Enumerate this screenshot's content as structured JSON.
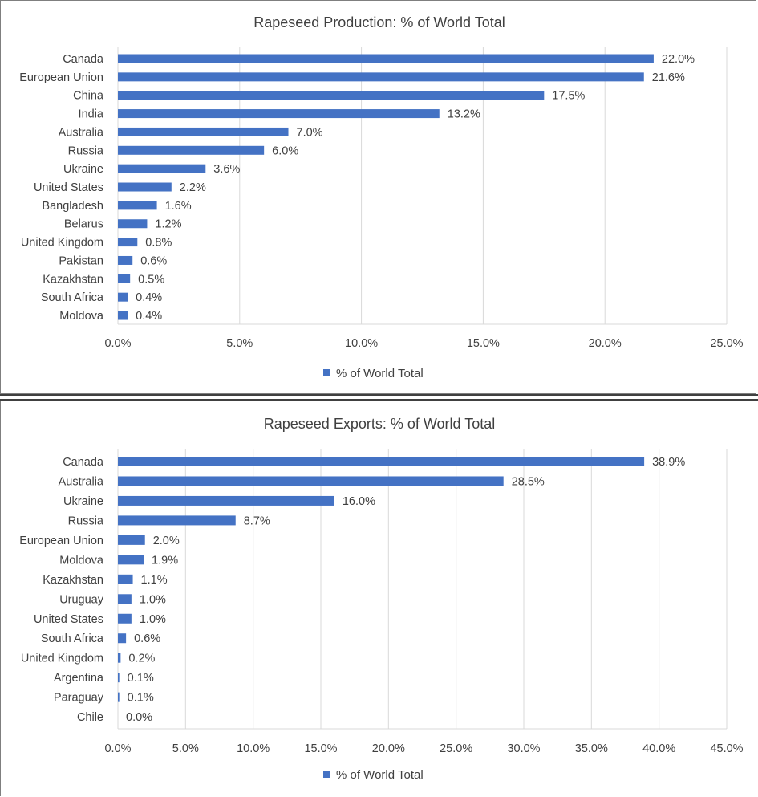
{
  "colors": {
    "bar": "#4472C4",
    "grid": "#d9d9d9",
    "text": "#404040",
    "frame": "#7f7f7f"
  },
  "chart_data": [
    {
      "type": "bar",
      "orientation": "horizontal",
      "title": "Rapeseed Production:  % of World Total",
      "categories": [
        "Canada",
        "European Union",
        "China",
        "India",
        "Australia",
        "Russia",
        "Ukraine",
        "United States",
        "Bangladesh",
        "Belarus",
        "United Kingdom",
        "Pakistan",
        "Kazakhstan",
        "South Africa",
        "Moldova"
      ],
      "values": [
        22.0,
        21.6,
        17.5,
        13.2,
        7.0,
        6.0,
        3.6,
        2.2,
        1.6,
        1.2,
        0.8,
        0.6,
        0.5,
        0.4,
        0.4
      ],
      "data_labels": [
        "22.0%",
        "21.6%",
        "17.5%",
        "13.2%",
        "7.0%",
        "6.0%",
        "3.6%",
        "2.2%",
        "1.6%",
        "1.2%",
        "0.8%",
        "0.6%",
        "0.5%",
        "0.4%",
        "0.4%"
      ],
      "xlim": [
        0,
        25
      ],
      "tick_values": [
        0,
        5,
        10,
        15,
        20,
        25
      ],
      "tick_labels": [
        "0.0%",
        "5.0%",
        "10.0%",
        "15.0%",
        "20.0%",
        "25.0%"
      ],
      "legend": {
        "label": "% of World Total",
        "position": "bottom"
      },
      "grid": true
    },
    {
      "type": "bar",
      "orientation": "horizontal",
      "title": "Rapeseed Exports:  % of World Total",
      "categories": [
        "Canada",
        "Australia",
        "Ukraine",
        "Russia",
        "European Union",
        "Moldova",
        "Kazakhstan",
        "Uruguay",
        "United States",
        "South Africa",
        "United Kingdom",
        "Argentina",
        "Paraguay",
        "Chile"
      ],
      "values": [
        38.9,
        28.5,
        16.0,
        8.7,
        2.0,
        1.9,
        1.1,
        1.0,
        1.0,
        0.6,
        0.2,
        0.1,
        0.1,
        0.0
      ],
      "data_labels": [
        "38.9%",
        "28.5%",
        "16.0%",
        "8.7%",
        "2.0%",
        "1.9%",
        "1.1%",
        "1.0%",
        "1.0%",
        "0.6%",
        "0.2%",
        "0.1%",
        "0.1%",
        "0.0%"
      ],
      "xlim": [
        0,
        45
      ],
      "tick_values": [
        0,
        5,
        10,
        15,
        20,
        25,
        30,
        35,
        40,
        45
      ],
      "tick_labels": [
        "0.0%",
        "5.0%",
        "10.0%",
        "15.0%",
        "20.0%",
        "25.0%",
        "30.0%",
        "35.0%",
        "40.0%",
        "45.0%"
      ],
      "legend": {
        "label": "% of World Total",
        "position": "bottom"
      },
      "grid": true
    }
  ]
}
